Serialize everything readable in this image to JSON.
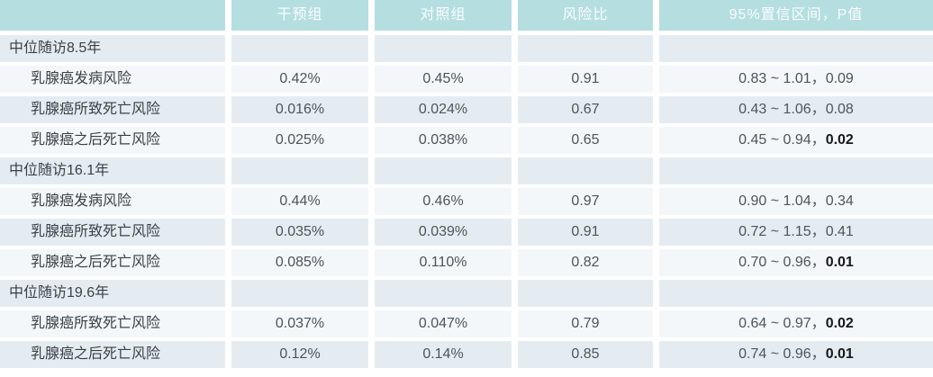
{
  "table": {
    "header": {
      "empty": "",
      "intervention": "干预组",
      "control": "对照组",
      "hazard_ratio": "风险比",
      "ci_p": "95%置信区间，P值"
    },
    "ci_p_separator": "，",
    "sections": [
      {
        "title": "中位随访8.5年",
        "rows": [
          {
            "label": "乳腺癌发病风险",
            "intervention": "0.42%",
            "control": "0.45%",
            "hazard_ratio": "0.91",
            "ci": "0.83 ~ 1.01",
            "p": "0.09",
            "p_bold": false
          },
          {
            "label": "乳腺癌所致死亡风险",
            "intervention": "0.016%",
            "control": "0.024%",
            "hazard_ratio": "0.67",
            "ci": "0.43 ~ 1.06",
            "p": "0.08",
            "p_bold": false
          },
          {
            "label": "乳腺癌之后死亡风险",
            "intervention": "0.025%",
            "control": "0.038%",
            "hazard_ratio": "0.65",
            "ci": "0.45 ~ 0.94",
            "p": "0.02",
            "p_bold": true
          }
        ]
      },
      {
        "title": "中位随访16.1年",
        "rows": [
          {
            "label": "乳腺癌发病风险",
            "intervention": "0.44%",
            "control": "0.46%",
            "hazard_ratio": "0.97",
            "ci": "0.90 ~ 1.04",
            "p": "0.34",
            "p_bold": false
          },
          {
            "label": "乳腺癌所致死亡风险",
            "intervention": "0.035%",
            "control": "0.039%",
            "hazard_ratio": "0.91",
            "ci": "0.72 ~ 1.15",
            "p": "0.41",
            "p_bold": false
          },
          {
            "label": "乳腺癌之后死亡风险",
            "intervention": "0.085%",
            "control": "0.110%",
            "hazard_ratio": "0.82",
            "ci": "0.70 ~ 0.96",
            "p": "0.01",
            "p_bold": true
          }
        ]
      },
      {
        "title": "中位随访19.6年",
        "rows": [
          {
            "label": "乳腺癌所致死亡风险",
            "intervention": "0.037%",
            "control": "0.047%",
            "hazard_ratio": "0.79",
            "ci": "0.64 ~ 0.97",
            "p": "0.02",
            "p_bold": true
          },
          {
            "label": "乳腺癌之后死亡风险",
            "intervention": "0.12%",
            "control": "0.14%",
            "hazard_ratio": "0.85",
            "ci": "0.74 ~ 0.96",
            "p": "0.01",
            "p_bold": true
          }
        ]
      }
    ]
  },
  "colors": {
    "header_bg": "#b5dee1",
    "row_dark": "#e5ecf1",
    "row_light": "#f3f7fa",
    "header_text": "#fafdfd",
    "label_text": "#3a4046",
    "value_text": "#4d545b",
    "bold_text": "#17191b",
    "gap_color": "#ffffff"
  },
  "chart_data": {
    "type": "table",
    "columns": [
      "",
      "干预组",
      "对照组",
      "风险比",
      "95%置信区间，P值"
    ],
    "rows": [
      [
        "中位随访8.5年",
        "",
        "",
        "",
        ""
      ],
      [
        "乳腺癌发病风险",
        "0.42%",
        "0.45%",
        "0.91",
        "0.83 ~ 1.01，0.09"
      ],
      [
        "乳腺癌所致死亡风险",
        "0.016%",
        "0.024%",
        "0.67",
        "0.43 ~ 1.06，0.08"
      ],
      [
        "乳腺癌之后死亡风险",
        "0.025%",
        "0.038%",
        "0.65",
        "0.45 ~ 0.94，0.02"
      ],
      [
        "中位随访16.1年",
        "",
        "",
        "",
        ""
      ],
      [
        "乳腺癌发病风险",
        "0.44%",
        "0.46%",
        "0.97",
        "0.90 ~ 1.04，0.34"
      ],
      [
        "乳腺癌所致死亡风险",
        "0.035%",
        "0.039%",
        "0.91",
        "0.72 ~ 1.15，0.41"
      ],
      [
        "乳腺癌之后死亡风险",
        "0.085%",
        "0.110%",
        "0.82",
        "0.70 ~ 0.96，0.01"
      ],
      [
        "中位随访19.6年",
        "",
        "",
        "",
        ""
      ],
      [
        "乳腺癌所致死亡风险",
        "0.037%",
        "0.047%",
        "0.79",
        "0.64 ~ 0.97，0.02"
      ],
      [
        "乳腺癌之后死亡风险",
        "0.12%",
        "0.14%",
        "0.85",
        "0.74 ~ 0.96，0.01"
      ]
    ],
    "bold_p_rows": [
      3,
      7,
      9,
      10
    ],
    "title": "",
    "legend_position": "none",
    "grid": "row-striping"
  }
}
